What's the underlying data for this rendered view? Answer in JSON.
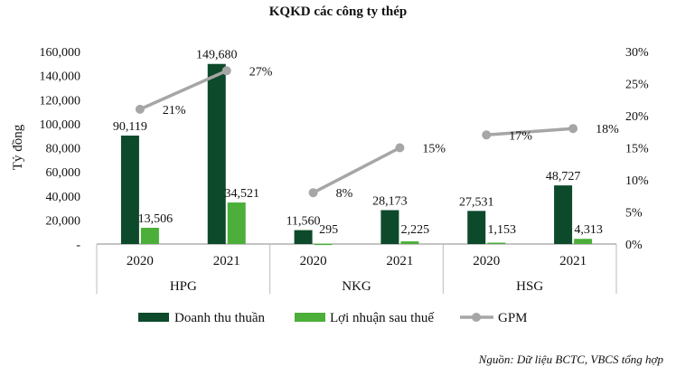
{
  "title": "KQKD các công ty thép",
  "source": "Nguồn: Dữ liệu BCTC, VBCS tổng hợp",
  "chart_data": {
    "type": "bar",
    "ylabel": "Tỷ đồng",
    "ylim": [
      0,
      160000
    ],
    "y_ticks": [
      "-",
      "20,000",
      "40,000",
      "60,000",
      "80,000",
      "100,000",
      "120,000",
      "140,000",
      "160,000"
    ],
    "y2lim": [
      0,
      0.3
    ],
    "y2_ticks": [
      "0%",
      "5%",
      "10%",
      "15%",
      "20%",
      "25%",
      "30%"
    ],
    "groups": [
      {
        "name": "HPG",
        "years": [
          "2020",
          "2021"
        ]
      },
      {
        "name": "NKG",
        "years": [
          "2020",
          "2021"
        ]
      },
      {
        "name": "HSG",
        "years": [
          "2020",
          "2021"
        ]
      }
    ],
    "series": [
      {
        "name": "Doanh thu thuần",
        "color": "#0c4a2b",
        "values": [
          90119,
          149680,
          11560,
          28173,
          27531,
          48727
        ],
        "labels": [
          "90,119",
          "149,680",
          "11,560",
          "28,173",
          "27,531",
          "48,727"
        ]
      },
      {
        "name": "Lợi nhuận sau thuế",
        "color": "#4caf3a",
        "values": [
          13506,
          34521,
          295,
          2225,
          1153,
          4313
        ],
        "labels": [
          "13,506",
          "34,521",
          "295",
          "2,225",
          "1,153",
          "4,313"
        ]
      },
      {
        "name": "GPM",
        "color": "#a6a6a6",
        "axis": "right",
        "values": [
          0.21,
          0.27,
          0.08,
          0.15,
          0.17,
          0.18
        ],
        "labels": [
          "21%",
          "27%",
          "8%",
          "15%",
          "17%",
          "18%"
        ]
      }
    ],
    "legend_position": "bottom",
    "grid": false
  }
}
